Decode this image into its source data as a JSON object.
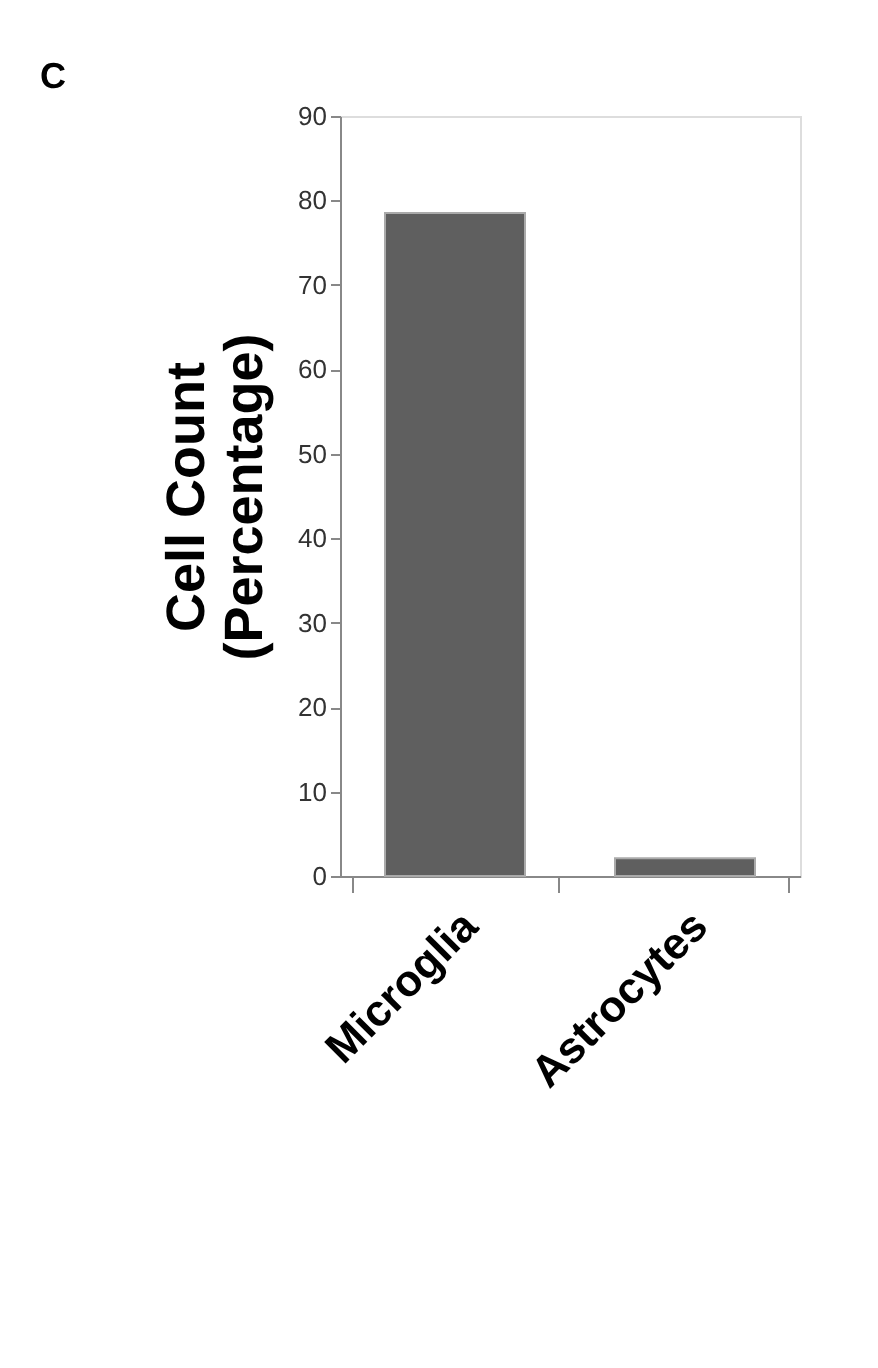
{
  "chart_data": {
    "type": "bar",
    "title": "C",
    "ylabel": "Cell Count\n(Percentage)",
    "categories": [
      "Microglia",
      "Astrocytes"
    ],
    "values": [
      78.5,
      2.1
    ],
    "color": "#5f5f5f",
    "ylim": [
      0,
      90
    ],
    "yticks": [
      0,
      10,
      20,
      30,
      40,
      50,
      60,
      70,
      80,
      90
    ],
    "grid": false
  }
}
